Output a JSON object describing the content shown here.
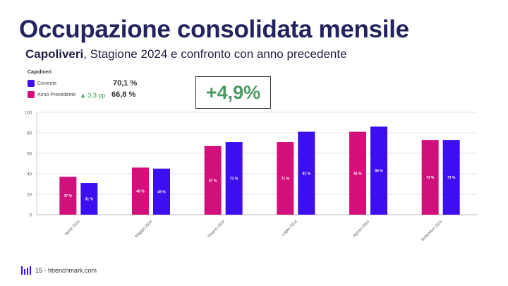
{
  "header": {
    "title": "Occupazione consolidata mensile",
    "subtitle_bold": "Capoliveri",
    "subtitle_rest": ", Stagione 2024 e confronto con anno precedente"
  },
  "badge": {
    "text": "+4,9%"
  },
  "legend": {
    "title": "Capoliveri",
    "items": [
      {
        "label": "Corrente",
        "value": "70,1 %",
        "color": "#3c0ff0"
      },
      {
        "label": "Anno Precedente",
        "value": "66,8 %",
        "color": "#d1107c"
      }
    ],
    "delta": "▲ 3,3 pp"
  },
  "footer": {
    "text": "15 - hbenchmark.com"
  },
  "colors": {
    "current": "#3c0ff0",
    "previous": "#d1107c",
    "positive": "#4e9a62",
    "title": "#23245e"
  },
  "chart_data": {
    "type": "bar",
    "categories": [
      "Aprile 2024",
      "Maggio 2024",
      "Giugno 2024",
      "Luglio 2024",
      "Agosto 2024",
      "Settembre 2024"
    ],
    "series": [
      {
        "name": "Anno Precedente",
        "values": [
          37,
          46,
          67,
          71,
          81,
          73
        ],
        "labels": [
          "37 %",
          "46 %",
          "67 %",
          "71 %",
          "81 %",
          "73 %"
        ]
      },
      {
        "name": "Corrente",
        "values": [
          31,
          45,
          71,
          81,
          86,
          73
        ],
        "labels": [
          "31 %",
          "45 %",
          "71 %",
          "81 %",
          "86 %",
          "73 %"
        ]
      }
    ],
    "yticks": [
      "0",
      "20",
      "40",
      "60",
      "80",
      "100"
    ],
    "ylim": [
      0,
      100
    ],
    "grid": true,
    "legend": "top-left"
  }
}
